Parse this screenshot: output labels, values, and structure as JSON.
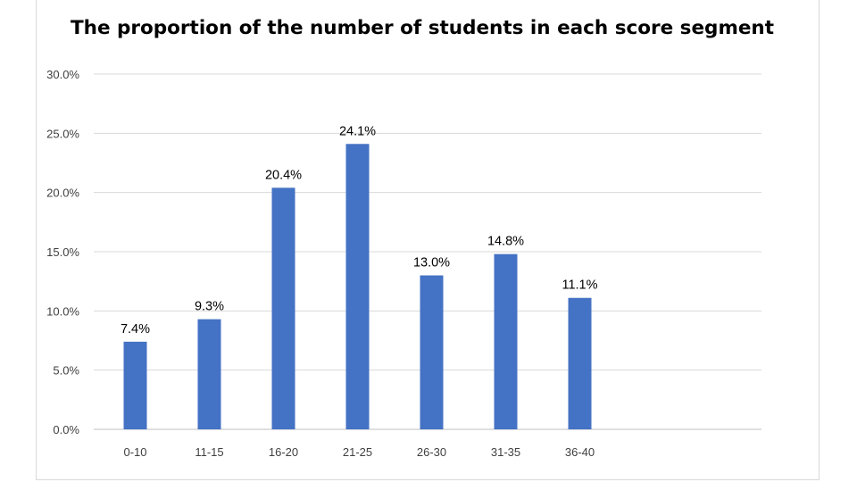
{
  "chart_data": {
    "type": "bar",
    "title": "The proportion of the number of students in each score segment",
    "xlabel": "",
    "ylabel": "",
    "categories": [
      "0-10",
      "11-15",
      "16-20",
      "21-25",
      "26-30",
      "31-35",
      "36-40"
    ],
    "values": [
      7.4,
      9.3,
      20.4,
      24.1,
      13.0,
      14.8,
      11.1
    ],
    "data_labels": [
      "7.4%",
      "9.3%",
      "20.4%",
      "24.1%",
      "13.0%",
      "14.8%",
      "11.1%"
    ],
    "y_ticks": [
      0,
      5,
      10,
      15,
      20,
      25,
      30
    ],
    "y_tick_labels": [
      "0.0%",
      "5.0%",
      "10.0%",
      "15.0%",
      "20.0%",
      "25.0%",
      "30.0%"
    ],
    "ylim": [
      0,
      30
    ],
    "grid": true,
    "legend": "none",
    "colors": {
      "bar": "#4472c4",
      "grid": "#d9d9d9",
      "axis": "#bfbfbf"
    }
  }
}
